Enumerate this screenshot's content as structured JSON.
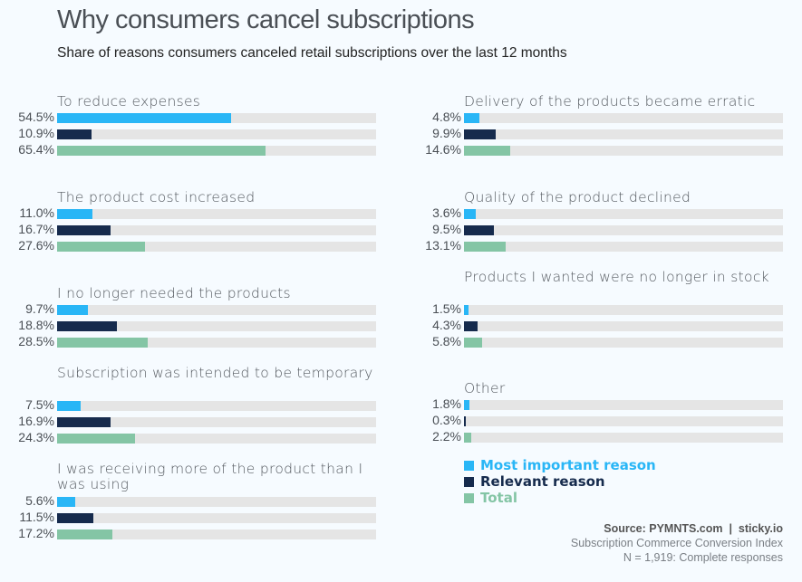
{
  "chart_data": {
    "type": "bar",
    "orientation": "horizontal",
    "title": "Why consumers cancel subscriptions",
    "subtitle": "Share of reasons consumers canceled retail subscriptions over the last 12 months",
    "xlim": [
      0,
      100
    ],
    "unit": "%",
    "series": [
      {
        "name": "Most important reason",
        "color": "#29b6f6"
      },
      {
        "name": "Relevant reason",
        "color": "#162b4d"
      },
      {
        "name": "Total",
        "color": "#84c5a5"
      }
    ],
    "categories": [
      {
        "label": "To reduce expenses",
        "values": [
          54.5,
          10.9,
          65.4
        ],
        "display": [
          "54.5%",
          "10.9%",
          "65.4%"
        ]
      },
      {
        "label": "The product cost increased",
        "values": [
          11.0,
          16.7,
          27.6
        ],
        "display": [
          "11.0%",
          "16.7%",
          "27.6%"
        ]
      },
      {
        "label": "I no longer needed the products",
        "values": [
          9.7,
          18.8,
          28.5
        ],
        "display": [
          "9.7%",
          "18.8%",
          "28.5%"
        ]
      },
      {
        "label": "Subscription was intended to be temporary",
        "values": [
          7.5,
          16.9,
          24.3
        ],
        "display": [
          "7.5%",
          "16.9%",
          "24.3%"
        ]
      },
      {
        "label": "I was receiving more of the product than I was using",
        "values": [
          5.6,
          11.5,
          17.2
        ],
        "display": [
          "5.6%",
          "11.5%",
          "17.2%"
        ]
      },
      {
        "label": "Delivery of the products became erratic",
        "values": [
          4.8,
          9.9,
          14.6
        ],
        "display": [
          "4.8%",
          "9.9%",
          "14.6%"
        ]
      },
      {
        "label": "Quality of the product declined",
        "values": [
          3.6,
          9.5,
          13.1
        ],
        "display": [
          "3.6%",
          "9.5%",
          "13.1%"
        ]
      },
      {
        "label": "Products I wanted were no longer in stock",
        "values": [
          1.5,
          4.3,
          5.8
        ],
        "display": [
          "1.5%",
          "4.3%",
          "5.8%"
        ]
      },
      {
        "label": "Other",
        "values": [
          1.8,
          0.3,
          2.2
        ],
        "display": [
          "1.8%",
          "0.3%",
          "2.2%"
        ]
      }
    ],
    "legend": {
      "placement": "bottom-right"
    },
    "grid": false
  },
  "source": {
    "line1": "Source: PYMNTS.com  |  sticky.io",
    "line2": "Subscription Commerce Conversion Index",
    "line3": "N = 1,919: Complete responses"
  }
}
